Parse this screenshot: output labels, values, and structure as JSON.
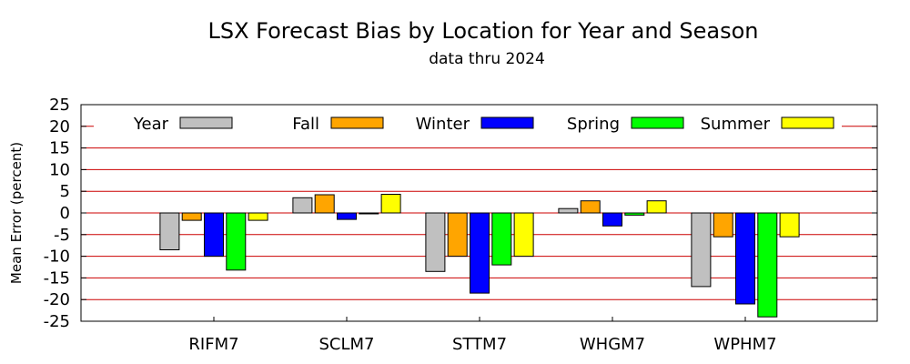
{
  "chart_data": {
    "type": "bar",
    "title": "LSX Forecast Bias by Location for Year and Season",
    "subtitle": "data thru 2024",
    "xlabel": "",
    "ylabel": "Mean Error (percent)",
    "ylim": [
      -25,
      25
    ],
    "yticks": [
      25,
      20,
      15,
      10,
      5,
      0,
      -5,
      -10,
      -15,
      -20,
      -25
    ],
    "grid": "horizontal",
    "legend": "top",
    "categories": [
      "RIFM7",
      "SCLM7",
      "STTM7",
      "WHGM7",
      "WPHM7"
    ],
    "series": [
      {
        "name": "Year",
        "color": "#c0c0c0",
        "values": [
          -8.5,
          3.5,
          -13.5,
          1.0,
          -17.0
        ]
      },
      {
        "name": "Fall",
        "color": "#ffa500",
        "values": [
          -1.7,
          4.2,
          -10.0,
          2.8,
          -5.5
        ]
      },
      {
        "name": "Winter",
        "color": "#0000ff",
        "values": [
          -10.0,
          -1.5,
          -18.5,
          -3.0,
          -21.0
        ]
      },
      {
        "name": "Spring",
        "color": "#00ff00",
        "values": [
          -13.2,
          0.0,
          -12.0,
          -0.5,
          -24.0
        ]
      },
      {
        "name": "Summer",
        "color": "#ffff00",
        "values": [
          -1.7,
          4.3,
          -10.0,
          2.8,
          -5.5
        ]
      }
    ]
  }
}
